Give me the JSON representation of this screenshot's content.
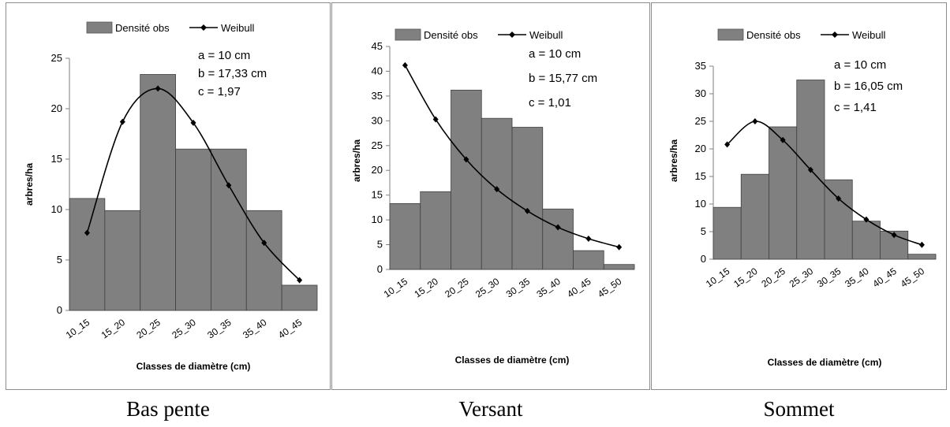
{
  "captions": [
    "Bas pente",
    "Versant",
    "Sommet"
  ],
  "chart_data": [
    {
      "type": "bar",
      "legend": [
        "Densité obs",
        "Weibull"
      ],
      "legend_position": "top-center",
      "xlabel": "Classes de diamètre (cm)",
      "ylabel": "arbres/ha",
      "ylim": [
        0,
        25
      ],
      "yticks": [
        "0",
        "5",
        "10",
        "15",
        "20",
        "25"
      ],
      "categories": [
        "10_15",
        "15_20",
        "20_25",
        "25_30",
        "30_35",
        "35_40",
        "40_45"
      ],
      "series": [
        {
          "name": "Densité obs",
          "type": "bar",
          "values": [
            11.1,
            9.9,
            23.4,
            16.0,
            16.0,
            9.9,
            2.5
          ]
        },
        {
          "name": "Weibull",
          "type": "line",
          "values": [
            7.7,
            18.7,
            22.0,
            18.6,
            12.4,
            6.7,
            3.0
          ]
        }
      ],
      "annotations": [
        "a = 10 cm",
        "b = 17,33 cm",
        "c = 1,97"
      ],
      "grid": false
    },
    {
      "type": "bar",
      "legend": [
        "Densité obs",
        "Weibull"
      ],
      "legend_position": "top-center",
      "xlabel": "Classes de diamètre (cm)",
      "ylabel": "arbres/ha",
      "ylim": [
        0,
        45
      ],
      "yticks": [
        "0",
        "5",
        "10",
        "15",
        "20",
        "25",
        "30",
        "35",
        "40",
        "45"
      ],
      "categories": [
        "10_15",
        "15_20",
        "20_25",
        "25_30",
        "30_35",
        "35_40",
        "40_45",
        "45_50"
      ],
      "series": [
        {
          "name": "Densité obs",
          "type": "bar",
          "values": [
            13.3,
            15.7,
            36.2,
            30.5,
            28.7,
            12.2,
            3.8,
            1.0
          ]
        },
        {
          "name": "Weibull",
          "type": "line",
          "values": [
            41.2,
            30.3,
            22.2,
            16.2,
            11.8,
            8.5,
            6.2,
            4.5
          ]
        }
      ],
      "annotations": [
        "a = 10 cm",
        "b = 15,77 cm",
        "c = 1,01"
      ],
      "grid": false
    },
    {
      "type": "bar",
      "legend": [
        "Densité obs",
        "Weibull"
      ],
      "legend_position": "top-center",
      "xlabel": "Classes de diamètre (cm)",
      "ylabel": "arbres/ha",
      "ylim": [
        0,
        35
      ],
      "yticks": [
        "0",
        "5",
        "10",
        "15",
        "20",
        "25",
        "30",
        "35"
      ],
      "categories": [
        "10_15",
        "15_20",
        "20_25",
        "25_30",
        "30_35",
        "35_40",
        "40_45",
        "45_50"
      ],
      "series": [
        {
          "name": "Densité obs",
          "type": "bar",
          "values": [
            9.4,
            15.4,
            24.0,
            32.5,
            14.4,
            6.9,
            5.1,
            0.9
          ]
        },
        {
          "name": "Weibull",
          "type": "line",
          "values": [
            20.8,
            25.0,
            21.6,
            16.2,
            11.0,
            7.2,
            4.4,
            2.6
          ]
        }
      ],
      "annotations": [
        "a = 10 cm",
        "b = 16,05 cm",
        "c = 1,41"
      ],
      "grid": false
    }
  ]
}
